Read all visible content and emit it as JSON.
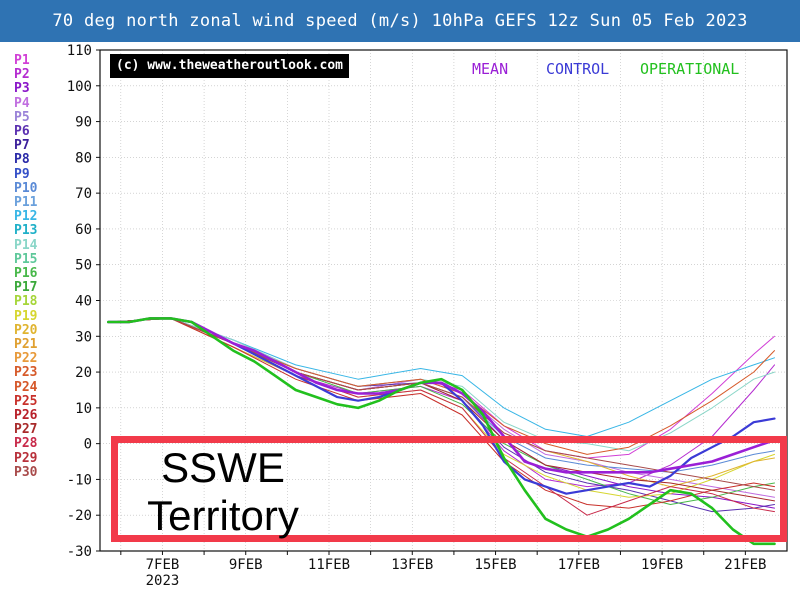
{
  "chart_data": {
    "type": "line",
    "title": "70 deg north zonal wind speed (m/s) 10hPa GEFS 12z Sun 05 Feb 2023",
    "copyright": "(c) www.theweatheroutlook.com",
    "ylim": [
      -30,
      110
    ],
    "yticks": [
      "110",
      "100",
      "90",
      "80",
      "70",
      "60",
      "50",
      "40",
      "30",
      "20",
      "10",
      "0",
      "-10",
      "-20",
      "-30"
    ],
    "xticks": [
      {
        "label": "7FEB",
        "sub": "2023",
        "day": 7
      },
      {
        "label": "9FEB",
        "sub": "",
        "day": 9
      },
      {
        "label": "11FEB",
        "sub": "",
        "day": 11
      },
      {
        "label": "13FEB",
        "sub": "",
        "day": 13
      },
      {
        "label": "15FEB",
        "sub": "",
        "day": 15
      },
      {
        "label": "17FEB",
        "sub": "",
        "day": 17
      },
      {
        "label": "19FEB",
        "sub": "",
        "day": 19
      },
      {
        "label": "21FEB",
        "sub": "",
        "day": 21
      }
    ],
    "xlim": [
      5.5,
      22
    ],
    "legend_top": [
      {
        "label": "MEAN",
        "color": "#9a1fd6"
      },
      {
        "label": "CONTROL",
        "color": "#3b3bd6"
      },
      {
        "label": "OPERATIONAL",
        "color": "#22c01e"
      }
    ],
    "members": [
      {
        "label": "P1",
        "color": "#d13fd6"
      },
      {
        "label": "P2",
        "color": "#b42bd0"
      },
      {
        "label": "P3",
        "color": "#8a16c8"
      },
      {
        "label": "P4",
        "color": "#c06ee0"
      },
      {
        "label": "P5",
        "color": "#9a82d8"
      },
      {
        "label": "P6",
        "color": "#5a2fb0"
      },
      {
        "label": "P7",
        "color": "#3a1e9a"
      },
      {
        "label": "P8",
        "color": "#2a2aa8"
      },
      {
        "label": "P9",
        "color": "#3550c8"
      },
      {
        "label": "P10",
        "color": "#5a8ad6"
      },
      {
        "label": "P11",
        "color": "#6aa0dc"
      },
      {
        "label": "P12",
        "color": "#38b6e6"
      },
      {
        "label": "P13",
        "color": "#1fb0c8"
      },
      {
        "label": "P14",
        "color": "#8ad6c8"
      },
      {
        "label": "P15",
        "color": "#5ec89a"
      },
      {
        "label": "P16",
        "color": "#48b84a"
      },
      {
        "label": "P17",
        "color": "#3aa83a"
      },
      {
        "label": "P18",
        "color": "#a6d63a"
      },
      {
        "label": "P19",
        "color": "#d6d630"
      },
      {
        "label": "P20",
        "color": "#e0b430"
      },
      {
        "label": "P21",
        "color": "#e0a030"
      },
      {
        "label": "P22",
        "color": "#e89a3a"
      },
      {
        "label": "P23",
        "color": "#d65a2a"
      },
      {
        "label": "P24",
        "color": "#d6582a"
      },
      {
        "label": "P25",
        "color": "#c8302a"
      },
      {
        "label": "P26",
        "color": "#b8202a"
      },
      {
        "label": "P27",
        "color": "#a82a2a"
      },
      {
        "label": "P28",
        "color": "#c82a4a"
      },
      {
        "label": "P29",
        "color": "#b8303a"
      },
      {
        "label": "P30",
        "color": "#a84a4a"
      }
    ],
    "series": [
      {
        "name": "MEAN",
        "color": "#9a1fd6",
        "width": 2.6,
        "x": [
          5.7,
          6.2,
          6.7,
          7.2,
          7.7,
          8.2,
          8.7,
          9.2,
          9.7,
          10.2,
          10.7,
          11.2,
          11.7,
          12.2,
          12.7,
          13.2,
          13.7,
          14.2,
          14.7,
          15.2,
          15.7,
          16.2,
          16.7,
          17.2,
          17.7,
          18.2,
          18.7,
          19.2,
          19.7,
          20.2,
          20.7,
          21.2,
          21.7
        ],
        "y": [
          34,
          34,
          35,
          35,
          34,
          31,
          28,
          26,
          23,
          20,
          17,
          15,
          14,
          14,
          15,
          17,
          17,
          14,
          9,
          2,
          -5,
          -7,
          -8,
          -8,
          -8,
          -8,
          -8,
          -7,
          -6,
          -5,
          -3,
          -1,
          1
        ]
      },
      {
        "name": "CONTROL",
        "color": "#3b3bd6",
        "width": 2.2,
        "x": [
          5.7,
          6.2,
          6.7,
          7.2,
          7.7,
          8.2,
          8.7,
          9.2,
          9.7,
          10.2,
          10.7,
          11.2,
          11.7,
          12.2,
          12.7,
          13.2,
          13.7,
          14.2,
          14.7,
          15.2,
          15.7,
          16.2,
          16.7,
          17.2,
          17.7,
          18.2,
          18.7,
          19.2,
          19.7,
          20.2,
          20.7,
          21.2,
          21.7
        ],
        "y": [
          34,
          34,
          35,
          35,
          34,
          31,
          28,
          25,
          22,
          19,
          16,
          13,
          12,
          13,
          15,
          17,
          17,
          12,
          5,
          -5,
          -10,
          -12,
          -14,
          -13,
          -12,
          -11,
          -12,
          -9,
          -4,
          -1,
          2,
          6,
          7
        ]
      },
      {
        "name": "OPERATIONAL",
        "color": "#22c01e",
        "width": 2.6,
        "x": [
          5.7,
          6.2,
          6.7,
          7.2,
          7.7,
          8.2,
          8.7,
          9.2,
          9.7,
          10.2,
          10.7,
          11.2,
          11.7,
          12.2,
          12.7,
          13.2,
          13.7,
          14.2,
          14.7,
          15.2,
          15.7,
          16.2,
          16.7,
          17.2,
          17.7,
          18.2,
          18.7,
          19.2,
          19.7,
          20.2,
          20.7,
          21.2,
          21.7
        ],
        "y": [
          34,
          34,
          35,
          35,
          34,
          30,
          26,
          23,
          19,
          15,
          13,
          11,
          10,
          12,
          15,
          17,
          18,
          15,
          8,
          -4,
          -13,
          -21,
          -24,
          -26,
          -24,
          -21,
          -17,
          -13,
          -14,
          -18,
          -24,
          -28,
          -28
        ]
      },
      {
        "name": "P1",
        "color": "#d13fd6",
        "width": 1,
        "x": [
          5.7,
          7.2,
          8.7,
          10.2,
          11.7,
          13.2,
          14.2,
          15.2,
          16.2,
          17.2,
          18.2,
          19.2,
          20.2,
          21.2,
          21.7
        ],
        "y": [
          34,
          35,
          29,
          21,
          16,
          18,
          15,
          5,
          -2,
          -4,
          -3,
          4,
          14,
          25,
          30
        ]
      },
      {
        "name": "P2",
        "color": "#b42bd0",
        "width": 1,
        "x": [
          5.7,
          7.2,
          8.7,
          10.2,
          11.7,
          13.2,
          14.2,
          15.2,
          16.2,
          17.2,
          18.2,
          19.2,
          20.2,
          21.2,
          21.7
        ],
        "y": [
          34,
          35,
          27,
          19,
          14,
          16,
          12,
          -2,
          -10,
          -12,
          -11,
          -6,
          2,
          15,
          22
        ]
      },
      {
        "name": "P3",
        "color": "#8a16c8",
        "width": 1,
        "x": [
          5.7,
          7.2,
          8.7,
          10.2,
          11.7,
          13.2,
          14.2,
          15.2,
          16.2,
          17.2,
          18.2,
          19.2,
          20.2,
          21.2,
          21.7
        ],
        "y": [
          34,
          35,
          28,
          20,
          15,
          17,
          13,
          1,
          -6,
          -9,
          -12,
          -14,
          -15,
          -17,
          -18
        ]
      },
      {
        "name": "P4",
        "color": "#c06ee0",
        "width": 1,
        "x": [
          5.7,
          7.2,
          8.7,
          10.2,
          11.7,
          13.2,
          14.2,
          15.2,
          16.2,
          17.2,
          18.2,
          19.2,
          20.2,
          21.2,
          21.7
        ],
        "y": [
          34,
          35,
          28,
          20,
          15,
          18,
          14,
          4,
          -3,
          -5,
          -8,
          -10,
          -12,
          -14,
          -15
        ]
      },
      {
        "name": "P6",
        "color": "#5a2fb0",
        "width": 1,
        "x": [
          5.7,
          7.2,
          8.7,
          10.2,
          11.7,
          13.2,
          14.2,
          15.2,
          16.2,
          17.2,
          18.2,
          19.2,
          20.2,
          21.2,
          21.7
        ],
        "y": [
          34,
          35,
          28,
          21,
          16,
          17,
          12,
          -1,
          -8,
          -11,
          -13,
          -16,
          -19,
          -18,
          -17
        ]
      },
      {
        "name": "P10",
        "color": "#5a8ad6",
        "width": 1,
        "x": [
          5.7,
          7.2,
          8.7,
          10.2,
          11.7,
          13.2,
          14.2,
          15.2,
          16.2,
          17.2,
          18.2,
          19.2,
          20.2,
          21.2,
          21.7
        ],
        "y": [
          34,
          35,
          28,
          20,
          15,
          17,
          13,
          2,
          -4,
          -6,
          -7,
          -8,
          -6,
          -3,
          -2
        ]
      },
      {
        "name": "P12",
        "color": "#38b6e6",
        "width": 1,
        "x": [
          5.7,
          7.2,
          8.7,
          10.2,
          11.7,
          13.2,
          14.2,
          15.2,
          16.2,
          17.2,
          18.2,
          19.2,
          20.2,
          21.2,
          21.7
        ],
        "y": [
          34,
          35,
          29,
          22,
          18,
          21,
          19,
          10,
          4,
          2,
          6,
          12,
          18,
          22,
          24
        ]
      },
      {
        "name": "P14",
        "color": "#8ad6c8",
        "width": 1,
        "x": [
          5.7,
          7.2,
          8.7,
          10.2,
          11.7,
          13.2,
          14.2,
          15.2,
          16.2,
          17.2,
          18.2,
          19.2,
          20.2,
          21.2,
          21.7
        ],
        "y": [
          34,
          35,
          29,
          21,
          16,
          18,
          16,
          6,
          1,
          0,
          -2,
          3,
          10,
          18,
          20
        ]
      },
      {
        "name": "P16",
        "color": "#48b84a",
        "width": 1,
        "x": [
          5.7,
          7.2,
          8.7,
          10.2,
          11.7,
          13.2,
          14.2,
          15.2,
          16.2,
          17.2,
          18.2,
          19.2,
          20.2,
          21.2,
          21.7
        ],
        "y": [
          34,
          35,
          28,
          20,
          14,
          16,
          11,
          0,
          -6,
          -10,
          -14,
          -17,
          -15,
          -12,
          -11
        ]
      },
      {
        "name": "P19",
        "color": "#d6d630",
        "width": 1,
        "x": [
          5.7,
          7.2,
          8.7,
          10.2,
          11.7,
          13.2,
          14.2,
          15.2,
          16.2,
          17.2,
          18.2,
          19.2,
          20.2,
          21.2,
          21.7
        ],
        "y": [
          34,
          35,
          27,
          19,
          13,
          15,
          10,
          -3,
          -9,
          -13,
          -15,
          -14,
          -10,
          -5,
          -3
        ]
      },
      {
        "name": "P20",
        "color": "#e0b430",
        "width": 1,
        "x": [
          5.7,
          7.2,
          8.7,
          10.2,
          11.7,
          13.2,
          14.2,
          15.2,
          16.2,
          17.2,
          18.2,
          19.2,
          20.2,
          21.2,
          21.7
        ],
        "y": [
          34,
          35,
          28,
          20,
          15,
          17,
          13,
          3,
          -2,
          -5,
          -9,
          -12,
          -9,
          -5,
          -4
        ]
      },
      {
        "name": "P23",
        "color": "#d65a2a",
        "width": 1,
        "x": [
          5.7,
          7.2,
          8.7,
          10.2,
          11.7,
          13.2,
          14.2,
          15.2,
          16.2,
          17.2,
          18.2,
          19.2,
          20.2,
          21.2,
          21.7
        ],
        "y": [
          34,
          35,
          28,
          21,
          16,
          18,
          14,
          5,
          0,
          -3,
          -1,
          5,
          12,
          20,
          26
        ]
      },
      {
        "name": "P25",
        "color": "#c8302a",
        "width": 1,
        "x": [
          5.7,
          7.2,
          8.7,
          10.2,
          11.7,
          13.2,
          14.2,
          15.2,
          16.2,
          17.2,
          18.2,
          19.2,
          20.2,
          21.2,
          21.7
        ],
        "y": [
          34,
          35,
          27,
          18,
          12,
          14,
          8,
          -5,
          -13,
          -17,
          -18,
          -16,
          -13,
          -11,
          -12
        ]
      },
      {
        "name": "P27",
        "color": "#a82a2a",
        "width": 1,
        "x": [
          5.7,
          7.2,
          8.7,
          10.2,
          11.7,
          13.2,
          14.2,
          15.2,
          16.2,
          17.2,
          18.2,
          19.2,
          20.2,
          21.2,
          21.7
        ],
        "y": [
          34,
          35,
          28,
          20,
          15,
          17,
          12,
          1,
          -6,
          -8,
          -10,
          -11,
          -13,
          -15,
          -16
        ]
      },
      {
        "name": "P28",
        "color": "#c82a4a",
        "width": 1,
        "x": [
          5.7,
          7.2,
          8.7,
          10.2,
          11.7,
          13.2,
          14.2,
          15.2,
          16.2,
          17.2,
          18.2,
          19.2,
          20.2,
          21.2,
          21.7
        ],
        "y": [
          34,
          35,
          28,
          19,
          13,
          15,
          10,
          -4,
          -12,
          -20,
          -16,
          -12,
          -14,
          -18,
          -19
        ]
      },
      {
        "name": "P30",
        "color": "#a84a4a",
        "width": 1,
        "x": [
          5.7,
          7.2,
          8.7,
          10.2,
          11.7,
          13.2,
          14.2,
          15.2,
          16.2,
          17.2,
          18.2,
          19.2,
          20.2,
          21.2,
          21.7
        ],
        "y": [
          34,
          35,
          28,
          20,
          15,
          17,
          13,
          3,
          -2,
          -4,
          -6,
          -8,
          -10,
          -12,
          -13
        ]
      }
    ],
    "grid": true,
    "annotation": {
      "line1": "SSWE",
      "line2": "Territory",
      "color": "#f23a4a",
      "range": [
        -30,
        0
      ]
    }
  }
}
